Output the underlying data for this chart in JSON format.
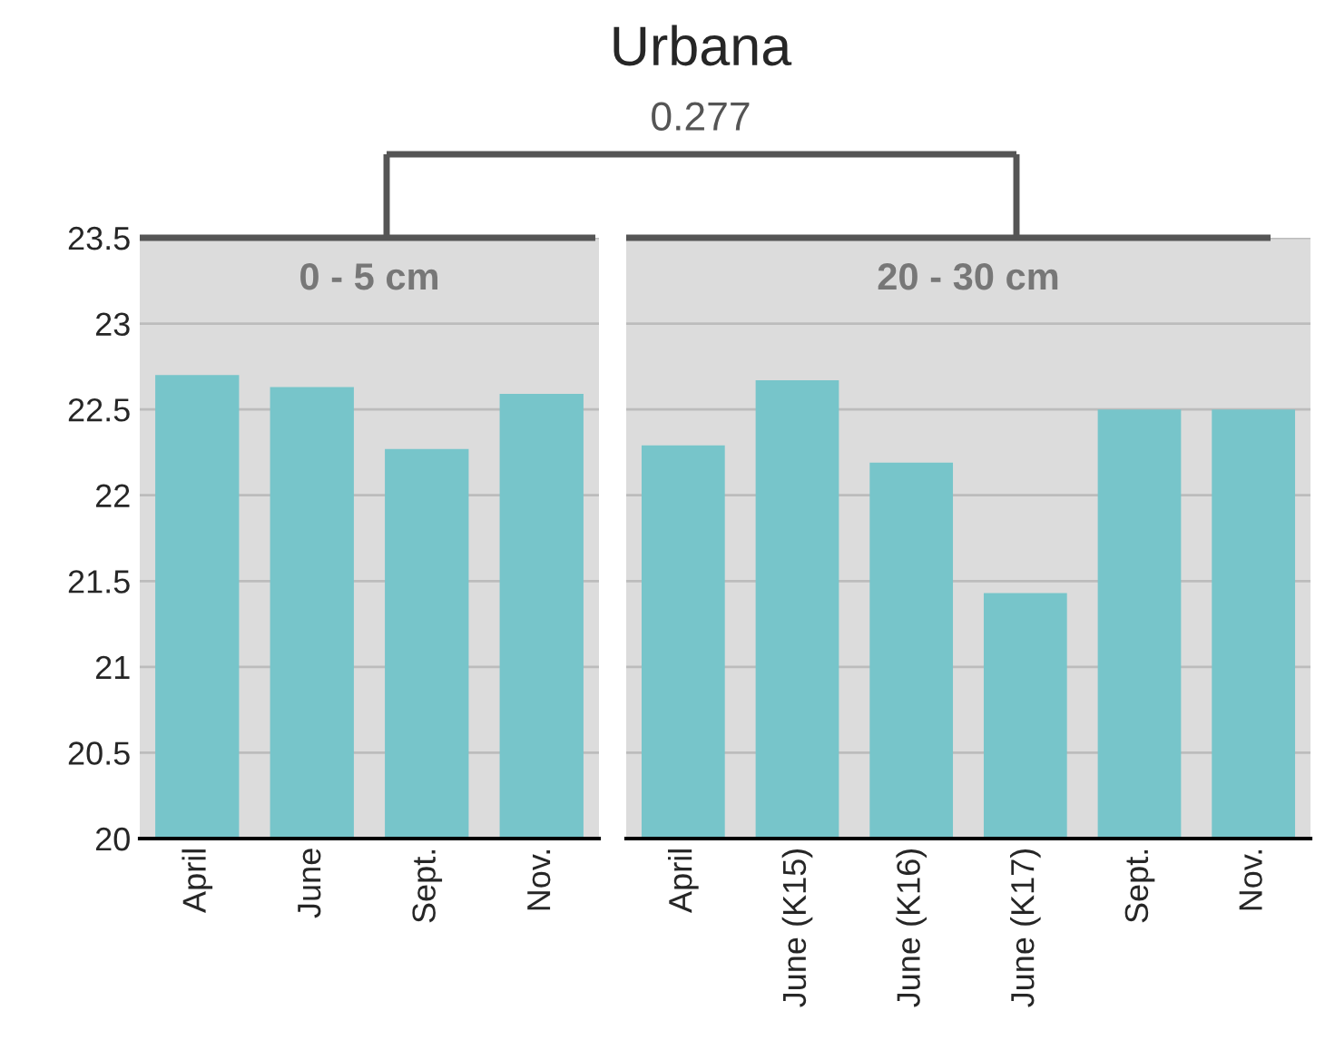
{
  "chart_data": [
    {
      "type": "bar",
      "subtitle": "0 - 5 cm",
      "categories": [
        "April",
        "June",
        "Sept.",
        "Nov."
      ],
      "values": [
        22.7,
        22.63,
        22.27,
        22.59
      ],
      "color": "#77c5ca",
      "ylim": [
        20,
        23.5
      ],
      "yticks": [
        20,
        20.5,
        21,
        21.5,
        22,
        22.5,
        23,
        23.5
      ],
      "grid": "y"
    },
    {
      "type": "bar",
      "title": "Urbana",
      "annotations": [
        "0.277"
      ],
      "subtitle": "20 - 30 cm",
      "categories": [
        "April",
        "June (K15)",
        "June (K16)",
        "June (K17)",
        "Sept.",
        "Nov."
      ],
      "values": [
        22.29,
        22.67,
        22.19,
        21.43,
        22.5,
        22.5
      ],
      "color": "#77c5ca",
      "ylim": [
        20,
        23.5
      ],
      "yticks": [
        20,
        20.5,
        21,
        21.5,
        22,
        22.5,
        23,
        23.5
      ],
      "grid": "y",
      "tick_labels": "x"
    }
  ]
}
